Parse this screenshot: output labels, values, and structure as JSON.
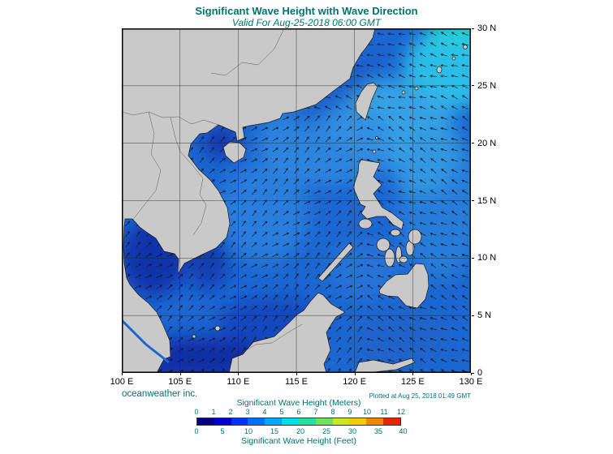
{
  "header": {
    "title": "Significant Wave Height with Wave Direction",
    "subtitle": "Valid For Aug-25-2018 06:00 GMT"
  },
  "footer": {
    "credit": "oceanweather inc.",
    "plotted": "Plotted at Aug 25, 2018 01:49 GMT"
  },
  "axes": {
    "x_ticks": [
      "100 E",
      "105 E",
      "110 E",
      "115 E",
      "120 E",
      "125 E",
      "130 E"
    ],
    "y_ticks": [
      "0",
      "5 N",
      "10 N",
      "15 N",
      "20 N",
      "25 N",
      "30 N"
    ],
    "lon_range": [
      100,
      130
    ],
    "lat_range": [
      0,
      30
    ],
    "grid_interval_deg": 5
  },
  "colorbar": {
    "meters_caption": "Significant Wave Height (Meters)",
    "meters_ticks": [
      0,
      1,
      2,
      3,
      4,
      5,
      6,
      7,
      8,
      9,
      10,
      11,
      12
    ],
    "feet_caption": "Significant Wave Height (Feet)",
    "feet_ticks": [
      0,
      5,
      10,
      15,
      20,
      25,
      30,
      35,
      40
    ],
    "segment_colors": [
      "#000082",
      "#0000d2",
      "#0032ff",
      "#0072ff",
      "#00aaff",
      "#00e0e8",
      "#22e2a2",
      "#74e060",
      "#cce81e",
      "#f2cc00",
      "#f08800",
      "#e62600"
    ]
  },
  "map": {
    "arrow_spacing": 13,
    "arrow_color": "#141414",
    "wave_direction_regions": {
      "east_china_sea_and_pacific": "arrows point toward west-southwest",
      "south_china_sea": "arrows point toward northeast"
    },
    "colors": {
      "land": "#c9c9c9",
      "coast": "#1a1a1a",
      "ocean_base": "#1c67d2",
      "text": "#007272"
    }
  }
}
